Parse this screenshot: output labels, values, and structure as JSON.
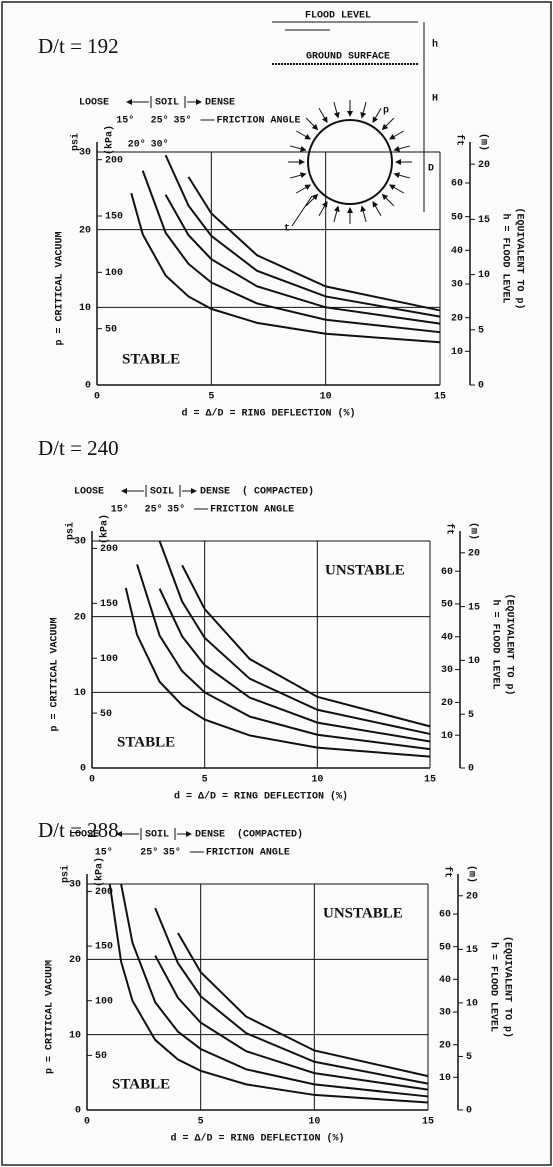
{
  "diagram": {
    "flood_level": "FLOOD LEVEL",
    "ground_surface": "GROUND SURFACE",
    "p": "p",
    "t": "t",
    "h": "h",
    "H": "H",
    "D": "D"
  },
  "chart_data": [
    {
      "type": "line",
      "title": "D/t = 192",
      "loose": "LOOSE",
      "soil": "SOIL",
      "dense": "DENSE",
      "friction_angle": "FRICTION ANGLE",
      "xlabel": "d = Δ/D = RING DEFLECTION  (%)",
      "ylabel": "p = CRITICAL VACUUM",
      "yunit": "psi",
      "y2unit": "(kPa)",
      "y3unit": "ft",
      "y4unit": "(m)",
      "rlabel": "h = FLOOD LEVEL",
      "rlabel_note": "(EQUIVALENT TO p)",
      "stable_label": "STABLE",
      "x": [
        1,
        1.5,
        2,
        3,
        4,
        5,
        7,
        10,
        15
      ],
      "series": [
        {
          "name": "15°",
          "color": "#111",
          "values": [
            null,
            24.7,
            19.4,
            14.1,
            11.4,
            9.8,
            8.0,
            6.6,
            5.5
          ]
        },
        {
          "name": "20°",
          "color": "#111",
          "values": [
            null,
            null,
            27.6,
            19.6,
            15.6,
            13.2,
            10.5,
            8.4,
            6.8
          ]
        },
        {
          "name": "25°",
          "color": "#111",
          "values": [
            null,
            null,
            null,
            24.5,
            19.3,
            16.2,
            12.7,
            10.0,
            7.9
          ]
        },
        {
          "name": "30°",
          "color": "#111",
          "values": [
            null,
            null,
            null,
            29.6,
            23.1,
            19.2,
            14.7,
            11.4,
            8.8
          ]
        },
        {
          "name": "35°",
          "color": "#111",
          "values": [
            null,
            null,
            null,
            null,
            26.8,
            22.1,
            16.7,
            12.7,
            9.6
          ]
        }
      ],
      "xlim": [
        0,
        15
      ],
      "xticks": [
        0,
        5,
        10,
        15
      ],
      "ylim": [
        0,
        30
      ],
      "yticks": [
        0,
        10,
        20,
        30
      ],
      "y2lim": [
        0,
        206.8
      ],
      "y2ticks": [
        50,
        100,
        150,
        200
      ],
      "y3lim": [
        0,
        69.2
      ],
      "y3ticks": [
        10,
        20,
        30,
        40,
        50,
        60
      ],
      "y4lim": [
        0,
        21.1
      ],
      "y4ticks": [
        0,
        5,
        10,
        15,
        20
      ],
      "grid": true
    },
    {
      "type": "line",
      "title": "D/t = 240",
      "loose": "LOOSE",
      "soil": "SOIL",
      "dense": "DENSE",
      "compacted": "( COMPACTED)",
      "friction_angle": "FRICTION ANGLE",
      "xlabel": "d = Δ/D = RING DEFLECTION  (%)",
      "ylabel": "p = CRITICAL VACUUM",
      "yunit": "psi",
      "y2unit": "(kPa)",
      "y3unit": "ft",
      "y4unit": "(m)",
      "rlabel": "h = FLOOD LEVEL",
      "rlabel_note": "(EQUIVALENT TO p)",
      "stable_label": "STABLE",
      "unstable_label": "UNSTABLE",
      "x": [
        1,
        1.5,
        2,
        3,
        4,
        5,
        7,
        10,
        15
      ],
      "series": [
        {
          "name": "15°",
          "color": "#111",
          "values": [
            null,
            23.8,
            17.6,
            11.4,
            8.3,
            6.4,
            4.3,
            2.7,
            1.5
          ]
        },
        {
          "color": "#111",
          "values": [
            null,
            null,
            26.9,
            17.5,
            12.8,
            10.0,
            6.8,
            4.4,
            2.5
          ]
        },
        {
          "name": "25°",
          "color": "#111",
          "values": [
            null,
            null,
            null,
            23.7,
            17.4,
            13.6,
            9.3,
            6.0,
            3.5
          ]
        },
        {
          "color": "#111",
          "values": [
            null,
            null,
            null,
            30.0,
            22.0,
            17.2,
            11.8,
            7.7,
            4.5
          ]
        },
        {
          "name": "35°",
          "color": "#111",
          "values": [
            null,
            null,
            null,
            null,
            26.8,
            21.0,
            14.4,
            9.4,
            5.5
          ]
        }
      ],
      "xlim": [
        0,
        15
      ],
      "xticks": [
        0,
        5,
        10,
        15
      ],
      "ylim": [
        0,
        30
      ],
      "yticks": [
        0,
        10,
        20,
        30
      ],
      "y2lim": [
        0,
        206.8
      ],
      "y2ticks": [
        50,
        100,
        150,
        200
      ],
      "y3lim": [
        0,
        69.2
      ],
      "y3ticks": [
        10,
        20,
        30,
        40,
        50,
        60
      ],
      "y4lim": [
        0,
        21.1
      ],
      "y4ticks": [
        0,
        5,
        10,
        15,
        20
      ],
      "grid": true
    },
    {
      "type": "line",
      "title": "D/t = 288",
      "loose": "LOOSE",
      "soil": "SOIL",
      "dense": "DENSE",
      "compacted": "(COMPACTED)",
      "friction_angle": "FRICTION ANGLE",
      "xlabel": "d = Δ/D = RING DEFLECTION  (%)",
      "ylabel": "p = CRITICAL VACUUM",
      "yunit": "psi",
      "y2unit": "(kPa)",
      "y3unit": "ft",
      "y4unit": "(m)",
      "rlabel": "h = FLOOD LEVEL",
      "rlabel_note": "(EQUIVALENT TO p)",
      "stable_label": "STABLE",
      "unstable_label": "UNSTABLE",
      "x": [
        1,
        1.5,
        2,
        3,
        4,
        5,
        7,
        10,
        15
      ],
      "series": [
        {
          "name": "15°",
          "color": "#111",
          "values": [
            30.0,
            19.7,
            14.5,
            9.3,
            6.7,
            5.2,
            3.4,
            2.0,
            1.0
          ]
        },
        {
          "color": "#111",
          "values": [
            null,
            30.0,
            22.2,
            14.3,
            10.4,
            8.1,
            5.4,
            3.4,
            1.8
          ]
        },
        {
          "name": "25°",
          "color": "#111",
          "values": [
            null,
            null,
            null,
            20.5,
            14.9,
            11.6,
            7.8,
            4.9,
            2.7
          ]
        },
        {
          "color": "#111",
          "values": [
            null,
            null,
            null,
            26.8,
            19.5,
            15.1,
            10.2,
            6.4,
            3.5
          ]
        },
        {
          "name": "35°",
          "color": "#111",
          "values": [
            null,
            null,
            null,
            null,
            23.5,
            18.3,
            12.4,
            7.9,
            4.5
          ]
        }
      ],
      "xlim": [
        0,
        15
      ],
      "xticks": [
        0,
        5,
        10,
        15
      ],
      "ylim": [
        0,
        30
      ],
      "yticks": [
        0,
        10,
        20,
        30
      ],
      "y2lim": [
        0,
        206.8
      ],
      "y2ticks": [
        50,
        100,
        150,
        200
      ],
      "y3lim": [
        0,
        69.2
      ],
      "y3ticks": [
        10,
        20,
        30,
        40,
        50,
        60
      ],
      "y4lim": [
        0,
        21.1
      ],
      "y4ticks": [
        0,
        5,
        10,
        15,
        20
      ],
      "grid": true
    }
  ]
}
